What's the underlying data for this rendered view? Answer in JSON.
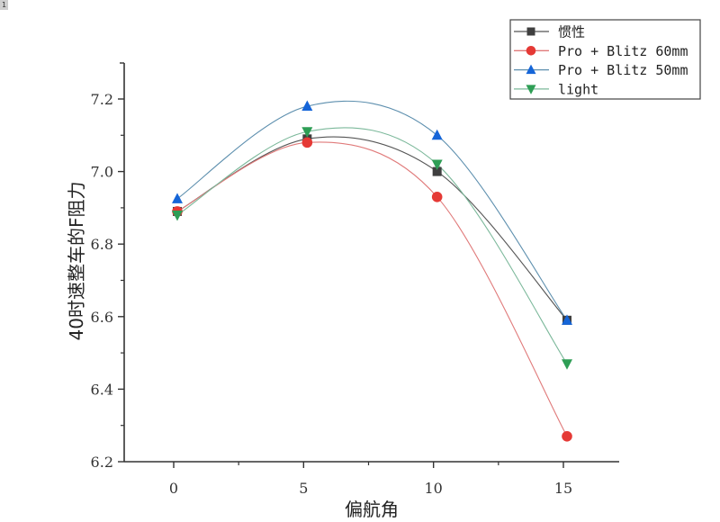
{
  "corner_badge": "1",
  "chart_data": {
    "type": "line",
    "title": "",
    "xlabel": "偏航角",
    "ylabel": "40时速整车的F阻力",
    "x": [
      0,
      5,
      10,
      15
    ],
    "xticks": [
      0,
      5,
      10,
      15
    ],
    "xlim": [
      -1.8,
      17
    ],
    "ylim": [
      6.2,
      7.31
    ],
    "yticks": [
      6.2,
      6.4,
      6.6,
      6.8,
      7.0,
      7.2
    ],
    "ytick_labels": [
      "6.2",
      "6.4",
      "6.6",
      "6.8",
      "7.0",
      "7.2"
    ],
    "grid": false,
    "legend_position": "top-right",
    "smooth": true,
    "series": [
      {
        "name": "惯性",
        "values": [
          6.89,
          7.09,
          7.0,
          6.59
        ],
        "marker": "square",
        "marker_color": "#3f3f3f",
        "line_color": "#555555"
      },
      {
        "name": "Pro + Blitz 60mm",
        "values": [
          6.89,
          7.08,
          6.93,
          6.27
        ],
        "marker": "circle",
        "marker_color": "#e53935",
        "line_color": "#e07a7a"
      },
      {
        "name": "Pro + Blitz 50mm",
        "values": [
          6.925,
          7.18,
          7.1,
          6.59
        ],
        "marker": "triangle-up",
        "marker_color": "#1565d8",
        "line_color": "#5d8fae"
      },
      {
        "name": "light",
        "values": [
          6.88,
          7.11,
          7.02,
          6.47
        ],
        "marker": "triangle-down",
        "marker_color": "#2e9e55",
        "line_color": "#7bb89a"
      }
    ]
  }
}
